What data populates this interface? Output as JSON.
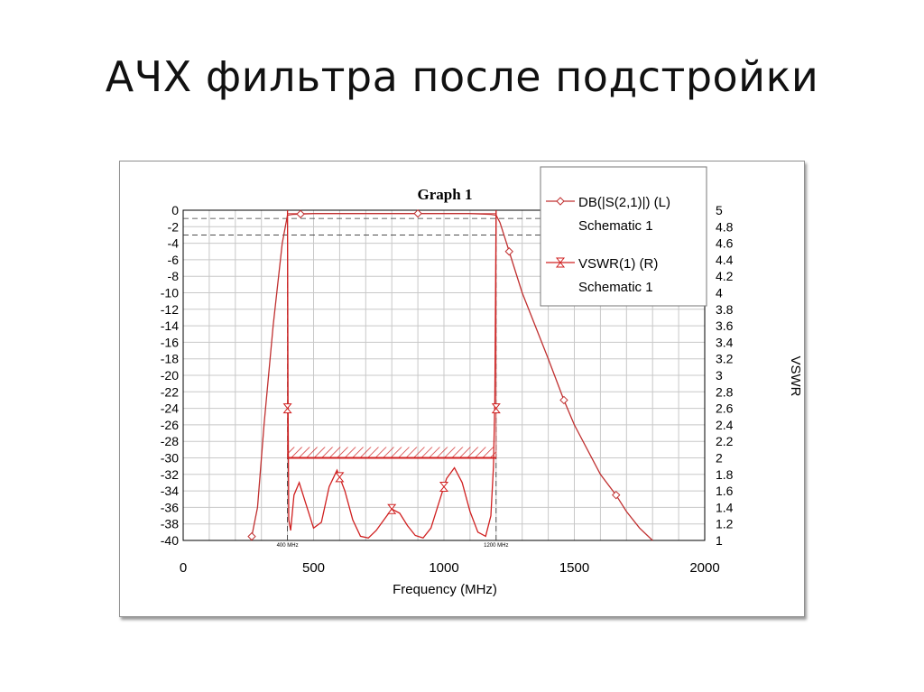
{
  "slide": {
    "title": "АЧХ фильтра после подстройки"
  },
  "chart_data": {
    "type": "line",
    "title": "Graph 1",
    "xlabel": "Frequency (MHz)",
    "ylabel_left": "",
    "ylabel_right": "VSWR",
    "xlim": [
      0,
      2000
    ],
    "ylim_left": [
      -40,
      0
    ],
    "ylim_right": [
      1,
      5
    ],
    "x_ticks": [
      "0",
      "500",
      "1000",
      "1500",
      "2000"
    ],
    "y_left_ticks": [
      "0",
      "-2",
      "-4",
      "-6",
      "-8",
      "-10",
      "-12",
      "-14",
      "-16",
      "-18",
      "-20",
      "-22",
      "-24",
      "-26",
      "-28",
      "-30",
      "-32",
      "-34",
      "-36",
      "-38",
      "-40"
    ],
    "y_right_ticks": [
      "5",
      "4.8",
      "4.6",
      "4.4",
      "4.2",
      "4",
      "3.8",
      "3.6",
      "3.4",
      "3.2",
      "3",
      "2.8",
      "2.6",
      "2.4",
      "2.2",
      "2",
      "1.8",
      "1.6",
      "1.4",
      "1.2",
      "1"
    ],
    "grid": true,
    "legend_position": "top-right",
    "series": [
      {
        "name": "DB(|S(2,1)|) (L)",
        "sub": "Schematic 1",
        "axis": "left",
        "color": "#c03030",
        "marker": "diamond",
        "x": [
          260,
          285,
          310,
          345,
          380,
          400,
          420,
          500,
          700,
          900,
          1100,
          1180,
          1200,
          1215,
          1240,
          1270,
          1300,
          1400,
          1460,
          1500,
          1600,
          1660,
          1700,
          1750,
          1800
        ],
        "y": [
          -40,
          -36,
          -26,
          -14,
          -4,
          -0.6,
          -0.5,
          -0.4,
          -0.4,
          -0.4,
          -0.4,
          -0.5,
          -0.6,
          -1.5,
          -4,
          -7,
          -10,
          -18,
          -23,
          -26,
          -32,
          -34.5,
          -36.5,
          -38.5,
          -40
        ],
        "markers_x": [
          263,
          450,
          900,
          1250,
          1460,
          1660
        ]
      },
      {
        "name": "VSWR(1) (R)",
        "sub": "Schematic 1",
        "axis": "right",
        "color": "#d02020",
        "marker": "hourglass",
        "x": [
          400,
          402,
          405,
          412,
          425,
          445,
          470,
          500,
          530,
          560,
          590,
          620,
          650,
          680,
          710,
          740,
          770,
          800,
          830,
          860,
          890,
          920,
          950,
          980,
          1010,
          1040,
          1070,
          1100,
          1130,
          1160,
          1180,
          1190,
          1195,
          1200
        ],
        "y": [
          5,
          2.7,
          1.25,
          1.12,
          1.55,
          1.7,
          1.45,
          1.15,
          1.22,
          1.65,
          1.85,
          1.6,
          1.25,
          1.05,
          1.03,
          1.12,
          1.25,
          1.38,
          1.33,
          1.18,
          1.06,
          1.03,
          1.15,
          1.45,
          1.75,
          1.88,
          1.7,
          1.35,
          1.1,
          1.05,
          1.3,
          1.9,
          2.7,
          5
        ],
        "markers_x": [
          400,
          600,
          800,
          1000,
          1200
        ]
      }
    ],
    "markers": [
      {
        "x": 400,
        "label": "400 MHz"
      },
      {
        "x": 1200,
        "label": "1200 MHz"
      }
    ],
    "limit_line": {
      "x": [
        400,
        1200
      ],
      "y_right": 2
    }
  }
}
